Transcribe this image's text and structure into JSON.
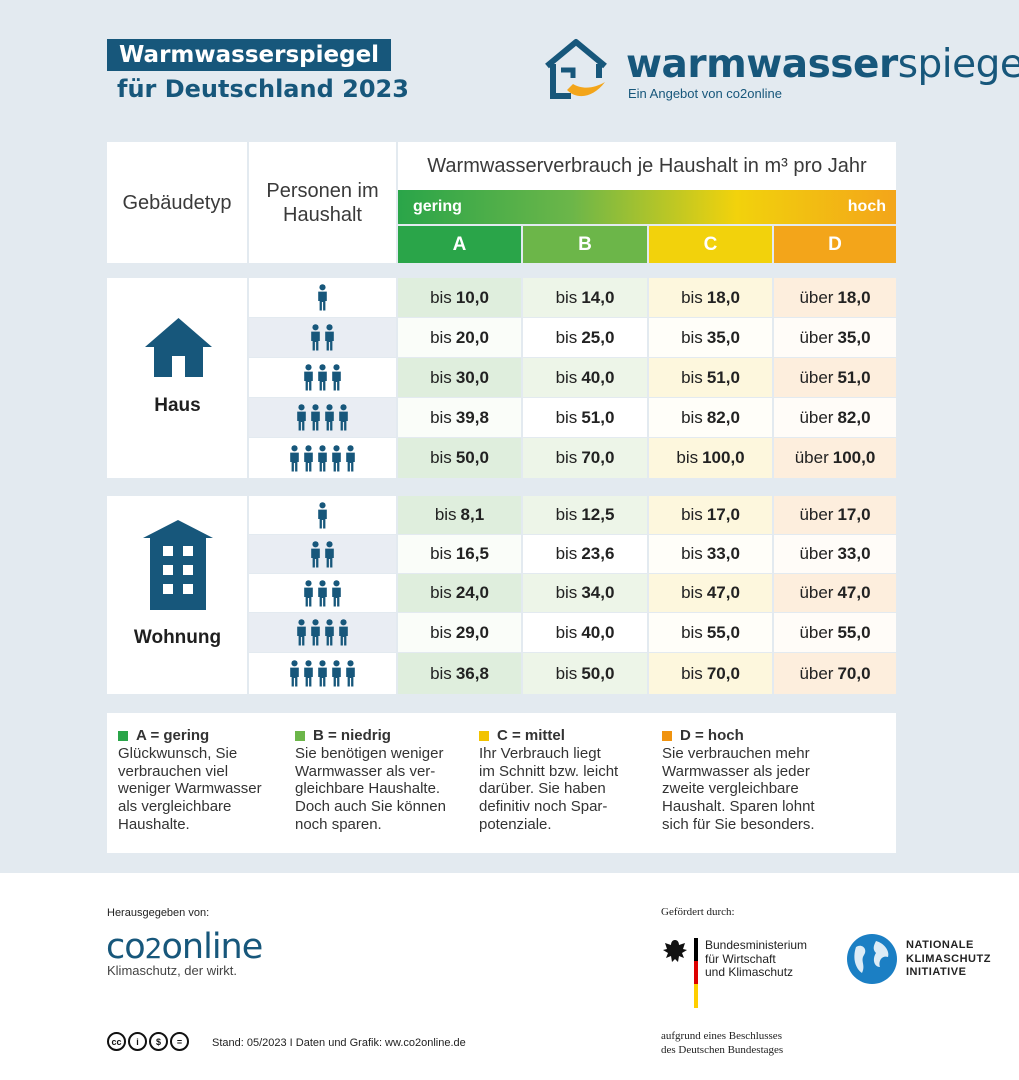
{
  "title": {
    "line1": "Warmwasserspiegel",
    "line2": "für Deutschland 2023"
  },
  "brand": {
    "name_bold": "warmwasser",
    "name_light": "spiegel",
    "subtitle": "Ein Angebot von co2online"
  },
  "table": {
    "header_building": "Gebäudetyp",
    "header_persons": "Personen im Haushalt",
    "header_consumption": "Warmwasserverbrauch je Haushalt in m³ pro Jahr",
    "scale_low": "gering",
    "scale_high": "hoch",
    "columns": [
      "A",
      "B",
      "C",
      "D"
    ],
    "column_colors": [
      "#2aa549",
      "#6cb649",
      "#f2d20c",
      "#f3a51a"
    ],
    "sections": [
      {
        "label": "Haus",
        "icon": "house-icon",
        "rows": [
          {
            "persons": 1,
            "values": [
              [
                "bis",
                "10,0"
              ],
              [
                "bis",
                "14,0"
              ],
              [
                "bis",
                "18,0"
              ],
              [
                "über",
                "18,0"
              ]
            ]
          },
          {
            "persons": 2,
            "values": [
              [
                "bis",
                "20,0"
              ],
              [
                "bis",
                "25,0"
              ],
              [
                "bis",
                "35,0"
              ],
              [
                "über",
                "35,0"
              ]
            ]
          },
          {
            "persons": 3,
            "values": [
              [
                "bis",
                "30,0"
              ],
              [
                "bis",
                "40,0"
              ],
              [
                "bis",
                "51,0"
              ],
              [
                "über",
                "51,0"
              ]
            ]
          },
          {
            "persons": 4,
            "values": [
              [
                "bis",
                "39,8"
              ],
              [
                "bis",
                "51,0"
              ],
              [
                "bis",
                "82,0"
              ],
              [
                "über",
                "82,0"
              ]
            ]
          },
          {
            "persons": 5,
            "values": [
              [
                "bis",
                "50,0"
              ],
              [
                "bis",
                "70,0"
              ],
              [
                "bis",
                "100,0"
              ],
              [
                "über",
                "100,0"
              ]
            ]
          }
        ]
      },
      {
        "label": "Wohnung",
        "icon": "apartment-building-icon",
        "rows": [
          {
            "persons": 1,
            "values": [
              [
                "bis",
                "8,1"
              ],
              [
                "bis",
                "12,5"
              ],
              [
                "bis",
                "17,0"
              ],
              [
                "über",
                "17,0"
              ]
            ]
          },
          {
            "persons": 2,
            "values": [
              [
                "bis",
                "16,5"
              ],
              [
                "bis",
                "23,6"
              ],
              [
                "bis",
                "33,0"
              ],
              [
                "über",
                "33,0"
              ]
            ]
          },
          {
            "persons": 3,
            "values": [
              [
                "bis",
                "24,0"
              ],
              [
                "bis",
                "34,0"
              ],
              [
                "bis",
                "47,0"
              ],
              [
                "über",
                "47,0"
              ]
            ]
          },
          {
            "persons": 4,
            "values": [
              [
                "bis",
                "29,0"
              ],
              [
                "bis",
                "40,0"
              ],
              [
                "bis",
                "55,0"
              ],
              [
                "über",
                "55,0"
              ]
            ]
          },
          {
            "persons": 5,
            "values": [
              [
                "bis",
                "36,8"
              ],
              [
                "bis",
                "50,0"
              ],
              [
                "bis",
                "70,0"
              ],
              [
                "über",
                "70,0"
              ]
            ]
          }
        ]
      }
    ]
  },
  "legend": [
    {
      "title": "A = gering",
      "color": "#2aa549",
      "lines": [
        "Glückwunsch, Sie",
        "verbrauchen viel",
        "weniger Warmwasser",
        "als vergleichbare",
        "Haushalte."
      ]
    },
    {
      "title": "B = niedrig",
      "color": "#6cb649",
      "lines": [
        "Sie benötigen weniger",
        "Warmwasser als ver-",
        "gleichbare Haushalte.",
        "Doch auch Sie können",
        "noch sparen."
      ]
    },
    {
      "title": "C = mittel",
      "color": "#f2c300",
      "lines": [
        "Ihr Verbrauch liegt",
        "im Schnitt bzw. leicht",
        "darüber. Sie haben",
        "definitiv noch Spar-",
        "potenziale."
      ]
    },
    {
      "title": "D = hoch",
      "color": "#f0930f",
      "lines": [
        "Sie verbrauchen mehr",
        "Warmwasser als jeder",
        "zweite vergleichbare",
        "Haushalt. Sparen lohnt",
        "sich für Sie besonders."
      ]
    }
  ],
  "footer": {
    "publisher_label": "Herausgegeben von:",
    "publisher_name_a": "co",
    "publisher_name_b": "2",
    "publisher_name_c": "online",
    "publisher_tagline": "Klimaschutz, der wirkt.",
    "funded_label": "Gefördert durch:",
    "ministry_lines": [
      "Bundesministerium",
      "für Wirtschaft",
      "und Klimaschutz"
    ],
    "initiative_lines": [
      "NATIONALE",
      "KLIMASCHUTZ",
      "INITIATIVE"
    ],
    "resolution_lines": [
      "aufgrund eines Beschlusses",
      "des Deutschen Bundestages"
    ],
    "stand": "Stand: 05/2023 I Daten und Grafik: ww.co2online.de",
    "license_icons": [
      "cc",
      "by",
      "nc",
      "nd"
    ]
  }
}
